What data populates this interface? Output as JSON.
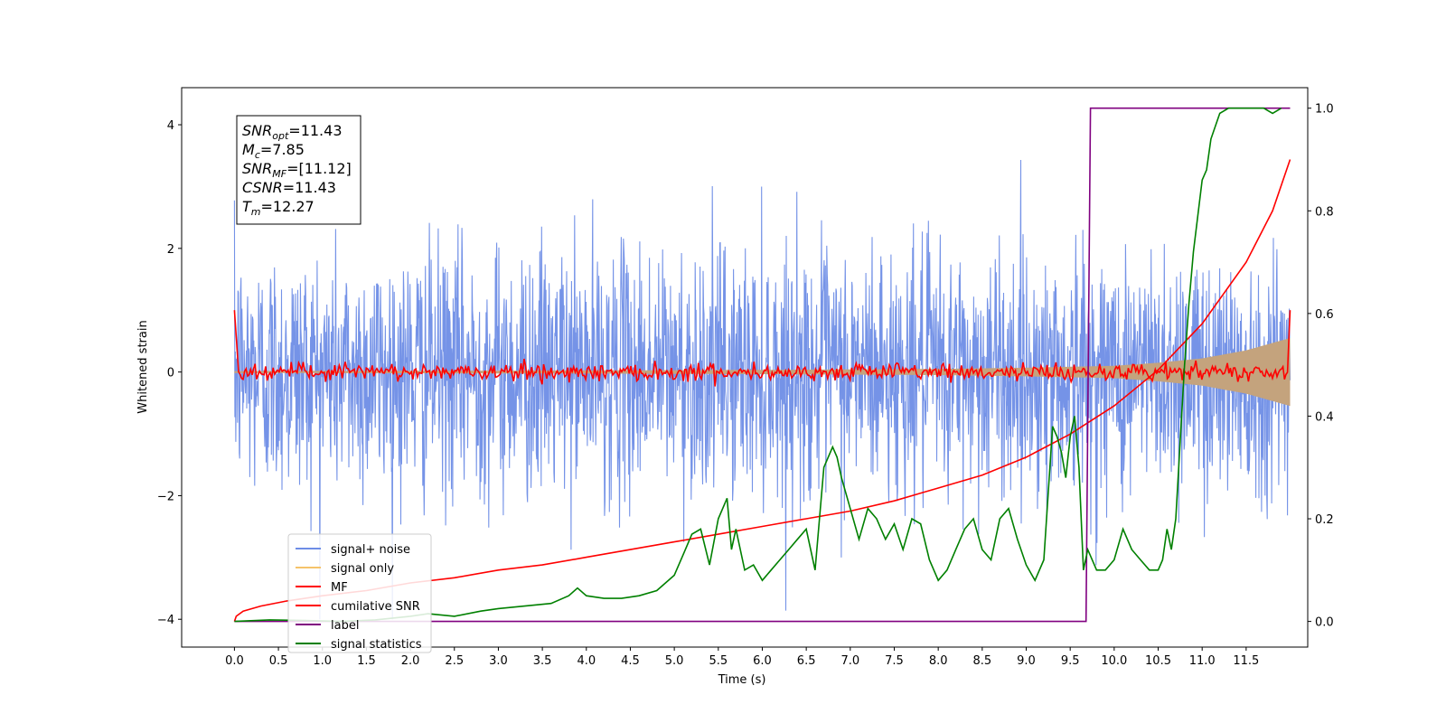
{
  "chart_data": {
    "type": "line",
    "xlabel": "Time (s)",
    "ylabel": "Whitened strain",
    "xlim": [
      -0.6,
      12.2
    ],
    "ylim": [
      -4.45,
      4.6
    ],
    "ylim_right": [
      -0.05,
      1.04
    ],
    "x_ticks": [
      "0.0",
      "0.5",
      "1.0",
      "1.5",
      "2.0",
      "2.5",
      "3.0",
      "3.5",
      "4.0",
      "4.5",
      "5.0",
      "5.5",
      "6.0",
      "6.5",
      "7.0",
      "7.5",
      "8.0",
      "8.5",
      "9.0",
      "9.5",
      "10.0",
      "10.5",
      "11.0",
      "11.5"
    ],
    "y_ticks_left": [
      "4",
      "2",
      "0",
      "−2",
      "−4"
    ],
    "y_ticks_right": [
      "1.0",
      "0.8",
      "0.6",
      "0.4",
      "0.2",
      "0.0"
    ],
    "grid": false,
    "legend_position": "lower-left",
    "annotation": {
      "lines": [
        {
          "sym": "SNR",
          "sub": "opt",
          "value": "=11.43"
        },
        {
          "sym": "M",
          "sub": "c",
          "value": "=7.85"
        },
        {
          "sym": "SNR",
          "sub": "MF",
          "value": "=[11.12]"
        },
        {
          "sym": "CSNR",
          "sub": "",
          "value": "=11.43"
        },
        {
          "sym": "T",
          "sub": "m",
          "value": "=12.27"
        }
      ]
    },
    "series": [
      {
        "name": "signal+ noise",
        "axis": "left",
        "color": "#6e8de6",
        "description_values": {
          "x_range": [
            0.0,
            12.0
          ],
          "mean": 0.0,
          "std": 1.0,
          "min": -4.0,
          "max": 3.7
        }
      },
      {
        "name": "signal only",
        "axis": "left",
        "color": "#f5c36a",
        "envelope": {
          "x": [
            0.0,
            2.0,
            4.0,
            6.0,
            8.0,
            9.0,
            10.0,
            10.5,
            11.0,
            11.5,
            12.0
          ],
          "amp": [
            0.015,
            0.02,
            0.025,
            0.035,
            0.05,
            0.07,
            0.1,
            0.15,
            0.22,
            0.35,
            0.55
          ]
        }
      },
      {
        "name": "MF",
        "axis": "left",
        "color": "#ff0000",
        "description_values": {
          "start": 1.0,
          "end": 1.0,
          "mean": 0.0,
          "amp": 0.12
        }
      },
      {
        "name": "cumilative SNR",
        "axis": "right",
        "color": "#ff0000",
        "x": [
          0.0,
          0.02,
          0.1,
          0.3,
          0.6,
          1.0,
          1.5,
          2.0,
          2.5,
          3.0,
          3.5,
          4.0,
          4.5,
          5.0,
          5.5,
          6.0,
          6.5,
          7.0,
          7.5,
          8.0,
          8.5,
          9.0,
          9.5,
          10.0,
          10.5,
          11.0,
          11.5,
          11.8,
          12.0
        ],
        "values": [
          0.0,
          0.01,
          0.02,
          0.03,
          0.04,
          0.05,
          0.06,
          0.075,
          0.085,
          0.1,
          0.11,
          0.125,
          0.14,
          0.155,
          0.17,
          0.185,
          0.2,
          0.215,
          0.235,
          0.26,
          0.285,
          0.32,
          0.365,
          0.42,
          0.49,
          0.58,
          0.7,
          0.8,
          0.9
        ]
      },
      {
        "name": "label",
        "axis": "right",
        "color": "#800080",
        "x": [
          0.0,
          9.68,
          9.73,
          12.0
        ],
        "values": [
          0.0,
          0.0,
          1.0,
          1.0
        ]
      },
      {
        "name": "signal statistics",
        "axis": "right",
        "color": "#008000",
        "x": [
          0.0,
          0.4,
          0.8,
          1.2,
          1.6,
          2.0,
          2.2,
          2.5,
          2.8,
          3.0,
          3.3,
          3.6,
          3.8,
          3.9,
          4.0,
          4.2,
          4.4,
          4.6,
          4.8,
          5.0,
          5.1,
          5.2,
          5.3,
          5.4,
          5.5,
          5.6,
          5.65,
          5.7,
          5.8,
          5.9,
          6.0,
          6.1,
          6.2,
          6.3,
          6.4,
          6.5,
          6.6,
          6.7,
          6.8,
          6.85,
          6.9,
          7.0,
          7.1,
          7.2,
          7.3,
          7.4,
          7.5,
          7.6,
          7.7,
          7.8,
          7.9,
          8.0,
          8.1,
          8.2,
          8.3,
          8.4,
          8.5,
          8.6,
          8.7,
          8.8,
          8.9,
          9.0,
          9.1,
          9.2,
          9.3,
          9.35,
          9.4,
          9.45,
          9.5,
          9.55,
          9.6,
          9.65,
          9.7,
          9.8,
          9.9,
          10.0,
          10.1,
          10.2,
          10.3,
          10.4,
          10.5,
          10.55,
          10.6,
          10.65,
          10.7,
          10.8,
          10.85,
          10.9,
          11.0,
          11.05,
          11.1,
          11.2,
          11.3,
          11.4,
          11.5,
          11.6,
          11.7,
          11.8,
          11.9
        ],
        "values": [
          0.0,
          0.003,
          0.002,
          0.0,
          0.003,
          0.01,
          0.015,
          0.01,
          0.02,
          0.025,
          0.03,
          0.035,
          0.05,
          0.065,
          0.05,
          0.045,
          0.045,
          0.05,
          0.06,
          0.09,
          0.13,
          0.17,
          0.18,
          0.11,
          0.2,
          0.24,
          0.14,
          0.18,
          0.1,
          0.11,
          0.08,
          0.1,
          0.12,
          0.14,
          0.16,
          0.18,
          0.1,
          0.3,
          0.34,
          0.32,
          0.28,
          0.22,
          0.16,
          0.22,
          0.2,
          0.16,
          0.19,
          0.14,
          0.2,
          0.19,
          0.12,
          0.08,
          0.1,
          0.14,
          0.18,
          0.2,
          0.14,
          0.12,
          0.2,
          0.22,
          0.16,
          0.11,
          0.08,
          0.12,
          0.38,
          0.36,
          0.33,
          0.28,
          0.36,
          0.4,
          0.3,
          0.1,
          0.14,
          0.1,
          0.1,
          0.12,
          0.18,
          0.14,
          0.12,
          0.1,
          0.1,
          0.12,
          0.18,
          0.14,
          0.2,
          0.5,
          0.62,
          0.72,
          0.86,
          0.88,
          0.94,
          0.99,
          1.0,
          1.0,
          1.0,
          1.0,
          1.0,
          0.99,
          1.0
        ]
      }
    ]
  }
}
